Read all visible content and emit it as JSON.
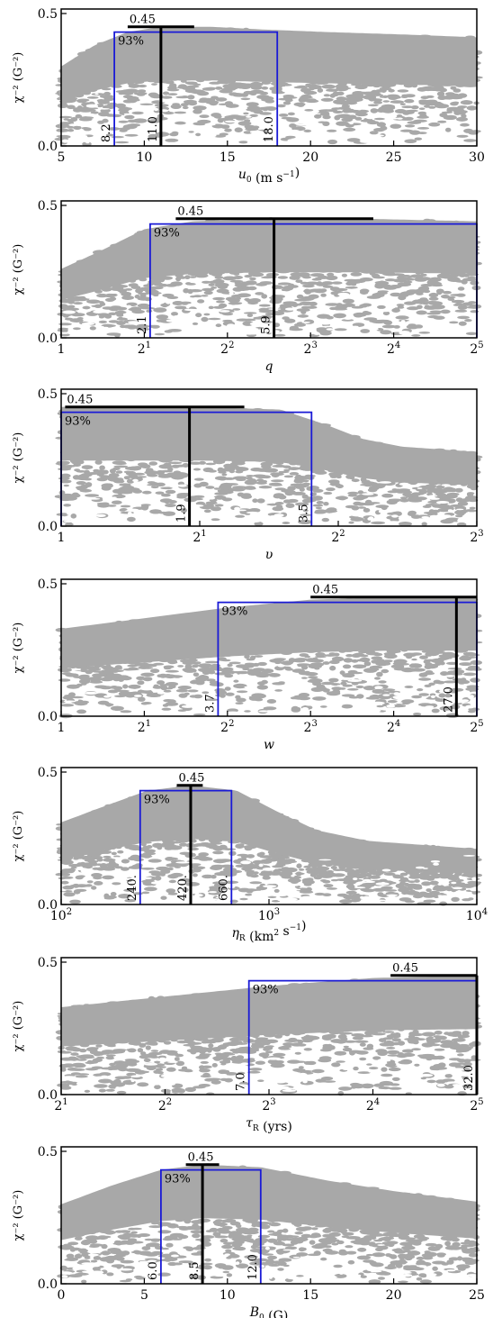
{
  "chart_data": [
    {
      "type": "scatter",
      "ylabel": "χ⁻² (G⁻²)",
      "xlabel": "u0 (m s⁻¹)",
      "xlabel_parts": {
        "sym": "u",
        "sub": "0",
        "unit_pre": " (m s",
        "unit_sup": "−1",
        "unit_post": ")"
      },
      "x_scale": "linear",
      "xlim": [
        5,
        30
      ],
      "x_ticks": [
        5,
        10,
        15,
        20,
        25,
        30
      ],
      "x_tick_labels": [
        "5",
        "10",
        "15",
        "20",
        "25",
        "30"
      ],
      "ylim": [
        0,
        0.5
      ],
      "y_tick_labels": [
        "0.0",
        "0.5"
      ],
      "peak": 0.45,
      "peak_label": "0.45",
      "peak_bar": [
        9,
        13
      ],
      "conf_level": 0.43,
      "conf_label": "93%",
      "best": 11.0,
      "best_label": "11.0",
      "low": 8.2,
      "low_label": "8.2",
      "high": 18.0,
      "high_label": "18.0",
      "envelope": [
        [
          5,
          0.3
        ],
        [
          7,
          0.38
        ],
        [
          9,
          0.43
        ],
        [
          11,
          0.45
        ],
        [
          14,
          0.45
        ],
        [
          17,
          0.44
        ],
        [
          21,
          0.43
        ],
        [
          26,
          0.42
        ],
        [
          30,
          0.41
        ]
      ]
    },
    {
      "type": "scatter",
      "ylabel": "χ⁻² (G⁻²)",
      "xlabel": "q",
      "xlabel_parts": {
        "sym": "q"
      },
      "x_scale": "log2",
      "xlim": [
        1,
        32
      ],
      "x_ticks": [
        1,
        2,
        4,
        8,
        16,
        32
      ],
      "x_tick_labels": [
        "1",
        "2^1",
        "2^2",
        "2^3",
        "2^4",
        "2^5"
      ],
      "ylim": [
        0,
        0.5
      ],
      "y_tick_labels": [
        "0.0",
        "0.5"
      ],
      "peak": 0.45,
      "peak_label": "0.45",
      "peak_bar": [
        2.6,
        13.5
      ],
      "conf_level": 0.43,
      "conf_label": "93%",
      "best": 5.9,
      "best_label": "5.9",
      "low": 2.1,
      "low_label": "2.1",
      "high": 32,
      "high_label": "",
      "envelope": [
        [
          1,
          0.26
        ],
        [
          1.4,
          0.33
        ],
        [
          2,
          0.41
        ],
        [
          3,
          0.44
        ],
        [
          5.9,
          0.45
        ],
        [
          12,
          0.45
        ],
        [
          32,
          0.44
        ]
      ]
    },
    {
      "type": "scatter",
      "ylabel": "χ⁻² (G⁻²)",
      "xlabel": "v",
      "xlabel_parts": {
        "sym": "υ"
      },
      "x_scale": "log2",
      "xlim": [
        1,
        8
      ],
      "x_ticks": [
        1,
        2,
        4,
        8
      ],
      "x_tick_labels": [
        "1",
        "2^1",
        "2^2",
        "2^3"
      ],
      "ylim": [
        0,
        0.5
      ],
      "y_tick_labels": [
        "0.0",
        "0.5"
      ],
      "peak": 0.45,
      "peak_label": "0.45",
      "peak_bar": [
        1.02,
        2.5
      ],
      "conf_level": 0.43,
      "conf_label": "93%",
      "best": 1.9,
      "best_label": "1.9",
      "low": 1,
      "low_label": "",
      "high": 3.5,
      "high_label": "3.5",
      "envelope": [
        [
          1,
          0.45
        ],
        [
          2,
          0.45
        ],
        [
          3,
          0.44
        ],
        [
          3.8,
          0.38
        ],
        [
          4.5,
          0.33
        ],
        [
          5.5,
          0.3
        ],
        [
          8,
          0.28
        ]
      ]
    },
    {
      "type": "scatter",
      "ylabel": "χ⁻² (G⁻²)",
      "xlabel": "w",
      "xlabel_parts": {
        "sym": "w"
      },
      "x_scale": "log2",
      "xlim": [
        1,
        32
      ],
      "x_ticks": [
        1,
        2,
        4,
        8,
        16,
        32
      ],
      "x_tick_labels": [
        "1",
        "2^1",
        "2^2",
        "2^3",
        "2^4",
        "2^5"
      ],
      "ylim": [
        0,
        0.5
      ],
      "y_tick_labels": [
        "0.0",
        "0.5"
      ],
      "peak": 0.45,
      "peak_label": "0.45",
      "peak_bar": [
        8,
        32
      ],
      "conf_level": 0.43,
      "conf_label": "93%",
      "best": 27.0,
      "best_label": "27.0",
      "low": 3.7,
      "low_label": "3.7",
      "high": 32,
      "high_label": "",
      "envelope": [
        [
          1,
          0.33
        ],
        [
          2,
          0.37
        ],
        [
          4,
          0.41
        ],
        [
          8,
          0.44
        ],
        [
          16,
          0.45
        ],
        [
          32,
          0.45
        ]
      ]
    },
    {
      "type": "scatter",
      "ylabel": "χ⁻² (G⁻²)",
      "xlabel": "ηR (km² s⁻¹)",
      "xlabel_parts": {
        "sym": "η",
        "sub": "R",
        "unit_pre": " (km",
        "unit_sup": "2",
        "unit_post": " s",
        "unit_sup2": "−1",
        "unit_post2": ")"
      },
      "x_scale": "log10",
      "xlim": [
        100,
        10000
      ],
      "x_ticks": [
        100,
        1000,
        10000
      ],
      "x_tick_labels": [
        "10^2",
        "10^3",
        "10^4"
      ],
      "ylim": [
        0,
        0.5
      ],
      "y_tick_labels": [
        "0.0",
        "0.5"
      ],
      "peak": 0.45,
      "peak_label": "0.45",
      "peak_bar": [
        360,
        480
      ],
      "conf_level": 0.43,
      "conf_label": "93%",
      "best": 420,
      "best_label": "420.",
      "low": 240,
      "low_label": "240.",
      "high": 660,
      "high_label": "660.",
      "envelope": [
        [
          100,
          0.31
        ],
        [
          160,
          0.37
        ],
        [
          260,
          0.43
        ],
        [
          420,
          0.45
        ],
        [
          700,
          0.43
        ],
        [
          1100,
          0.35
        ],
        [
          1700,
          0.28
        ],
        [
          3000,
          0.24
        ],
        [
          10000,
          0.21
        ]
      ]
    },
    {
      "type": "scatter",
      "ylabel": "χ⁻² (G⁻²)",
      "xlabel": "τR (yrs)",
      "xlabel_parts": {
        "sym": "τ",
        "sub": "R",
        "unit_pre": " (yrs)"
      },
      "x_scale": "log2",
      "xlim": [
        2,
        32
      ],
      "x_ticks": [
        2,
        4,
        8,
        16,
        32
      ],
      "x_tick_labels": [
        "2^1",
        "2^2",
        "2^3",
        "2^4",
        "2^5"
      ],
      "ylim": [
        0,
        0.5
      ],
      "y_tick_labels": [
        "0.0",
        "0.5"
      ],
      "peak": 0.45,
      "peak_label": "0.45",
      "peak_bar": [
        18,
        32
      ],
      "conf_level": 0.43,
      "conf_label": "93%",
      "best": 32.0,
      "best_label": "32.0",
      "low": 7.0,
      "low_label": "7.0",
      "high": 32,
      "high_label": "",
      "envelope": [
        [
          2,
          0.33
        ],
        [
          4,
          0.37
        ],
        [
          8,
          0.41
        ],
        [
          16,
          0.44
        ],
        [
          32,
          0.45
        ]
      ]
    },
    {
      "type": "scatter",
      "ylabel": "χ⁻² (G⁻²)",
      "xlabel": "B0 (G)",
      "xlabel_parts": {
        "sym": "B",
        "sub": "0",
        "unit_pre": " (G)"
      },
      "x_scale": "linear",
      "xlim": [
        0,
        25
      ],
      "x_ticks": [
        0,
        5,
        10,
        15,
        20,
        25
      ],
      "x_tick_labels": [
        "0",
        "5",
        "10",
        "15",
        "20",
        "25"
      ],
      "ylim": [
        0,
        0.5
      ],
      "y_tick_labels": [
        "0.0",
        "0.5"
      ],
      "peak": 0.45,
      "peak_label": "0.45",
      "peak_bar": [
        7.5,
        9.5
      ],
      "conf_level": 0.43,
      "conf_label": "93%",
      "best": 8.5,
      "best_label": "8.5",
      "low": 6.0,
      "low_label": "6.0",
      "high": 12.0,
      "high_label": "12.0",
      "envelope": [
        [
          0,
          0.3
        ],
        [
          3,
          0.37
        ],
        [
          6,
          0.43
        ],
        [
          8.5,
          0.45
        ],
        [
          12,
          0.44
        ],
        [
          16,
          0.39
        ],
        [
          20,
          0.35
        ],
        [
          25,
          0.31
        ]
      ]
    }
  ],
  "colors": {
    "scatter": "#a8a8a8",
    "confidence": "#1a1ad6",
    "best": "#000000",
    "axes": "#000000"
  }
}
